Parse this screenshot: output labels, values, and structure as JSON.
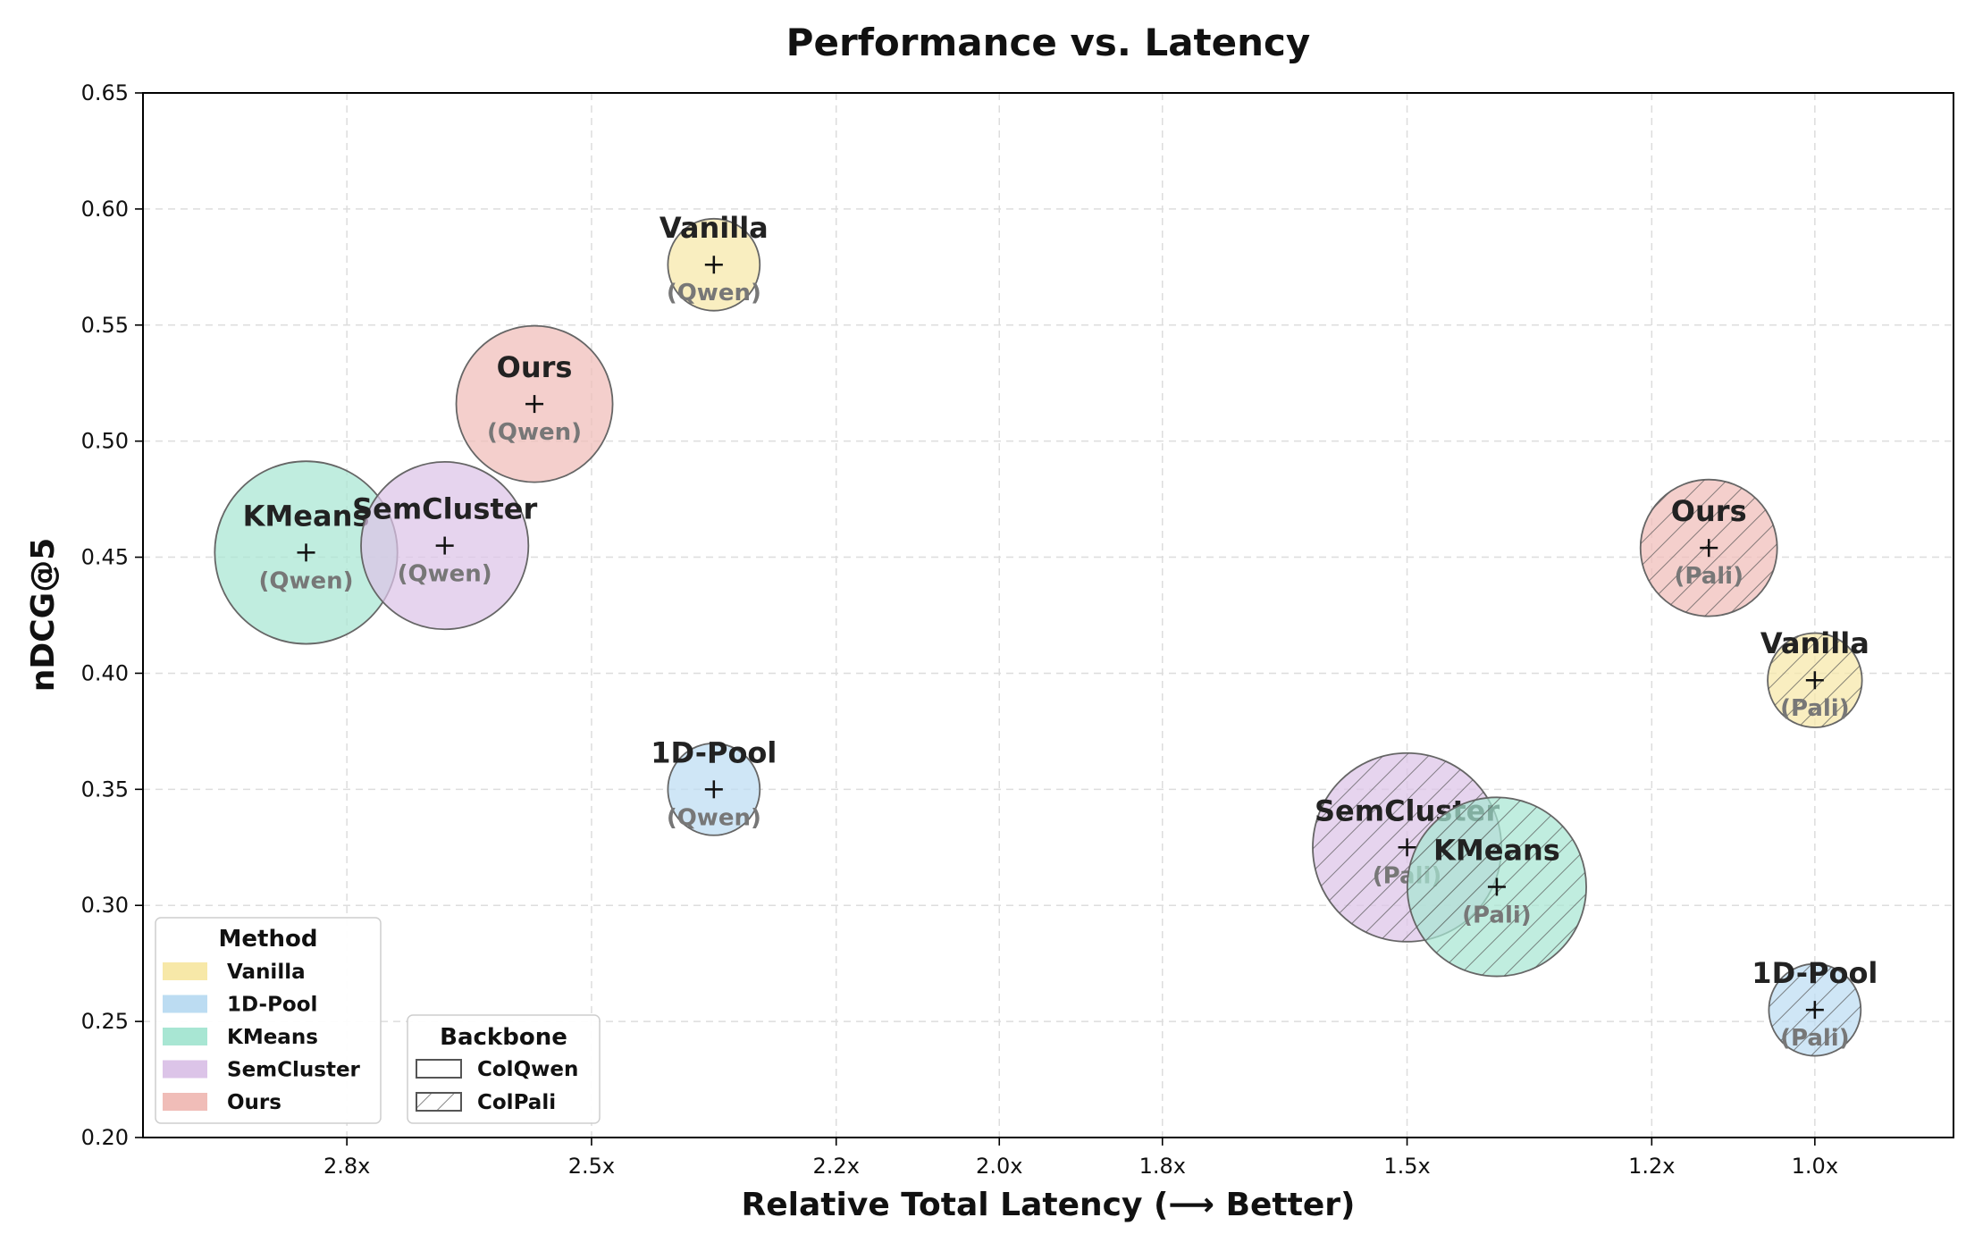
{
  "chart_data": {
    "type": "scatter",
    "title": "Performance vs. Latency",
    "xlabel": "Relative Total Latency (⟶ Better)",
    "ylabel": "nDCG@5",
    "x_axis_reversed": true,
    "xlim": [
      3.05,
      0.83
    ],
    "ylim": [
      0.2,
      0.65
    ],
    "x_ticks": [
      2.8,
      2.5,
      2.2,
      2.0,
      1.8,
      1.5,
      1.2,
      1.0
    ],
    "x_tick_labels": [
      "2.8x",
      "2.5x",
      "2.2x",
      "2.0x",
      "1.8x",
      "1.5x",
      "1.2x",
      "1.0x"
    ],
    "y_ticks": [
      0.2,
      0.25,
      0.3,
      0.35,
      0.4,
      0.45,
      0.5,
      0.55,
      0.6,
      0.65
    ],
    "y_tick_labels": [
      "0.20",
      "0.25",
      "0.30",
      "0.35",
      "0.40",
      "0.45",
      "0.50",
      "0.55",
      "0.60",
      "0.65"
    ],
    "grid": true,
    "points": [
      {
        "method": "Vanilla",
        "backbone": "Qwen",
        "x": 2.35,
        "y": 0.576,
        "size": 0.19
      },
      {
        "method": "Ours",
        "backbone": "Qwen",
        "x": 2.57,
        "y": 0.516,
        "size": 0.55
      },
      {
        "method": "KMeans",
        "backbone": "Qwen",
        "x": 2.85,
        "y": 0.452,
        "size": 0.75
      },
      {
        "method": "SemCluster",
        "backbone": "Qwen",
        "x": 2.68,
        "y": 0.455,
        "size": 0.63
      },
      {
        "method": "1D-Pool",
        "backbone": "Qwen",
        "x": 2.35,
        "y": 0.35,
        "size": 0.19
      },
      {
        "method": "Ours",
        "backbone": "Pali",
        "x": 1.13,
        "y": 0.454,
        "size": 0.42
      },
      {
        "method": "Vanilla",
        "backbone": "Pali",
        "x": 1.0,
        "y": 0.397,
        "size": 0.2
      },
      {
        "method": "SemCluster",
        "backbone": "Pali",
        "x": 1.5,
        "y": 0.325,
        "size": 0.8
      },
      {
        "method": "KMeans",
        "backbone": "Pali",
        "x": 1.39,
        "y": 0.308,
        "size": 0.72
      },
      {
        "method": "1D-Pool",
        "backbone": "Pali",
        "x": 1.0,
        "y": 0.255,
        "size": 0.19
      }
    ],
    "method_colors": {
      "Vanilla": "#f7e8a8",
      "1D-Pool": "#bcdcf2",
      "KMeans": "#a8e6d3",
      "SemCluster": "#dcc4e8",
      "Ours": "#f0bdb8"
    },
    "legend_placement": "lower-left",
    "legend_method": {
      "title": "Method",
      "entries": [
        "Vanilla",
        "1D-Pool",
        "KMeans",
        "SemCluster",
        "Ours"
      ]
    },
    "legend_backbone": {
      "title": "Backbone",
      "entries": [
        {
          "label": "ColQwen",
          "pattern": "solid"
        },
        {
          "label": "ColPali",
          "pattern": "hatched"
        }
      ]
    }
  }
}
